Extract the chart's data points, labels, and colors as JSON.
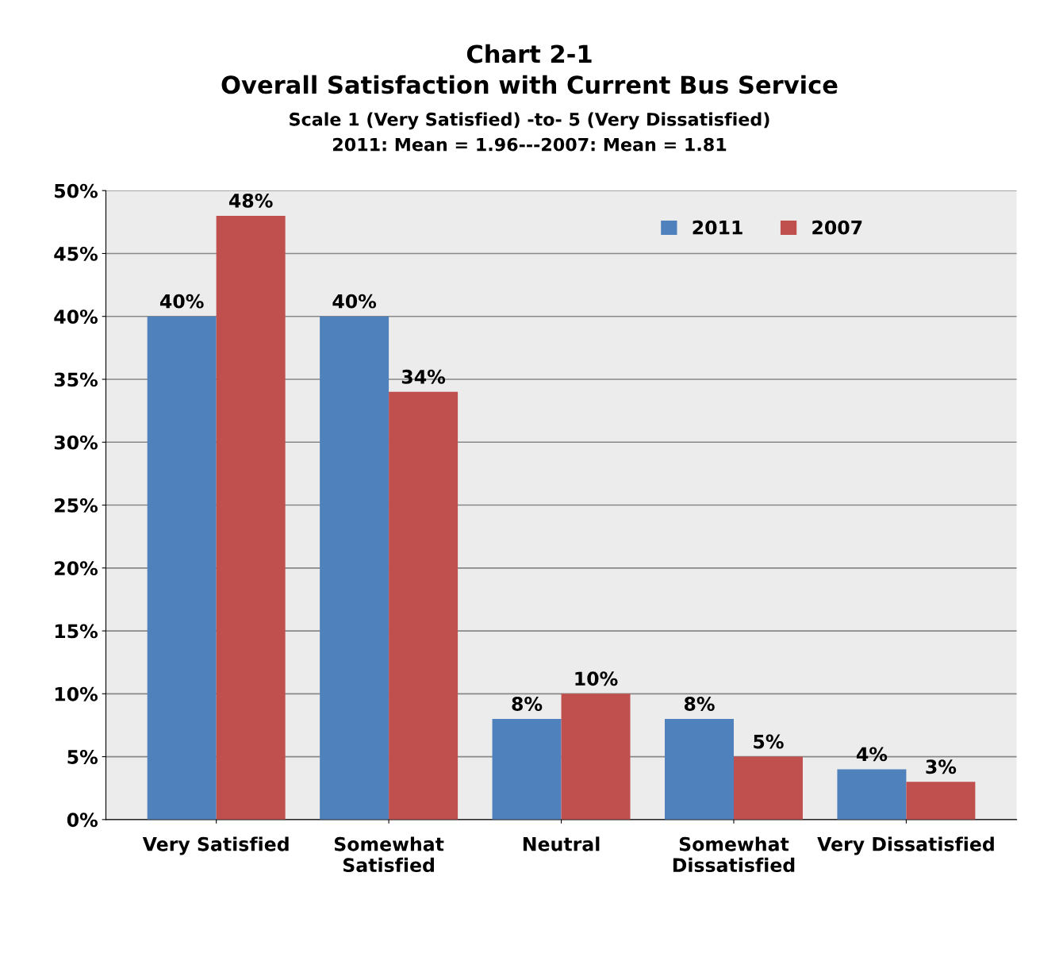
{
  "chart_data": {
    "type": "bar",
    "title": "Chart 2-1\nOverall Satisfaction with Current Bus Service",
    "subtitle": "Scale 1 (Very Satisfied) -to- 5 (Very Dissatisfied)\n2011: Mean = 1.96---2007: Mean = 1.81",
    "categories": [
      "Very Satisfied",
      "Somewhat\nSatisfied",
      "Neutral",
      "Somewhat\nDissatisfied",
      "Very Dissatisfied"
    ],
    "series": [
      {
        "name": "2011",
        "color": "#4f81bd",
        "values": [
          40,
          40,
          8,
          8,
          4
        ],
        "value_labels": [
          "40%",
          "40%",
          "8%",
          "8%",
          "4%"
        ]
      },
      {
        "name": "2007",
        "color": "#c0504d",
        "values": [
          48,
          34,
          10,
          5,
          3
        ],
        "value_labels": [
          "48%",
          "34%",
          "10%",
          "5%",
          "3%"
        ]
      }
    ],
    "ylim": [
      0,
      50
    ],
    "yticks": [
      {
        "value": 0,
        "label": "0%"
      },
      {
        "value": 5,
        "label": "5%"
      },
      {
        "value": 10,
        "label": "10%"
      },
      {
        "value": 15,
        "label": "15%"
      },
      {
        "value": 20,
        "label": "20%"
      },
      {
        "value": 25,
        "label": "25%"
      },
      {
        "value": 30,
        "label": "30%"
      },
      {
        "value": 35,
        "label": "35%"
      },
      {
        "value": 40,
        "label": "40%"
      },
      {
        "value": 45,
        "label": "45%"
      },
      {
        "value": 50,
        "label": "50%"
      }
    ],
    "grid": "y",
    "legend": "top right"
  }
}
